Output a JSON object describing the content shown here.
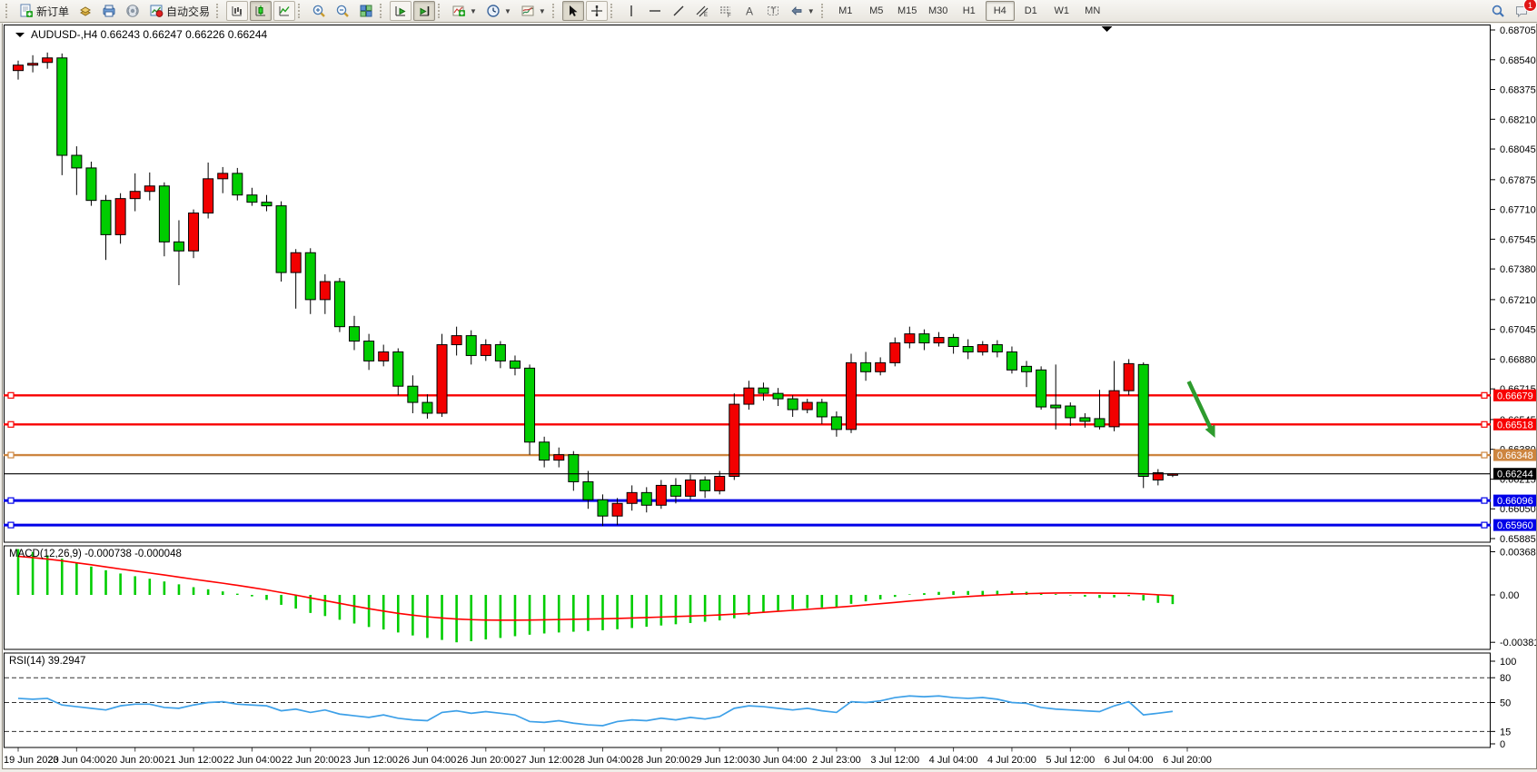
{
  "toolbar": {
    "new_order_label": "新订单",
    "autotrade_label": "自动交易",
    "timeframes": [
      "M1",
      "M5",
      "M15",
      "M30",
      "H1",
      "H4",
      "D1",
      "W1",
      "MN"
    ],
    "active_timeframe": "H4",
    "notification_count": "1",
    "icons": [
      "new-order",
      "gold-bars",
      "print-preview",
      "broadcast",
      "autotrade",
      "bar-chart",
      "candlestick-chart",
      "line-chart",
      "zoom-in",
      "zoom-out",
      "tile-windows",
      "auto-scroll",
      "chart-shift",
      "indicators",
      "periods",
      "templates",
      "cursor",
      "crosshair",
      "vertical-line",
      "horizontal-line",
      "trendline",
      "equidistant-channel",
      "fibonacci-lines",
      "text",
      "text-label",
      "arrow-objects",
      "search",
      "notifications"
    ]
  },
  "chart": {
    "title_symbol": "AUDUSD-,H4",
    "title_ohlc": "0.66243 0.66247 0.66226 0.66244"
  },
  "chart_data": [
    {
      "type": "candlestick",
      "title": "AUDUSD-,H4",
      "up_color": "#f20000",
      "down_color": "#00cd00",
      "ylim": [
        0.65885,
        0.68705
      ],
      "y_ticks": [
        "0.68705",
        "0.68540",
        "0.68375",
        "0.68210",
        "0.68045",
        "0.67875",
        "0.67710",
        "0.67545",
        "0.67380",
        "0.67210",
        "0.67045",
        "0.66880",
        "0.66715",
        "0.66545",
        "0.66380",
        "0.66215",
        "0.66050",
        "0.65885"
      ],
      "x_labels": [
        "19 Jun 2023",
        "20 Jun 04:00",
        "20 Jun 20:00",
        "21 Jun 12:00",
        "22 Jun 04:00",
        "22 Jun 20:00",
        "23 Jun 12:00",
        "26 Jun 04:00",
        "26 Jun 20:00",
        "27 Jun 12:00",
        "28 Jun 04:00",
        "28 Jun 20:00",
        "29 Jun 12:00",
        "30 Jun 04:00",
        "2 Jul 23:00",
        "3 Jul 12:00",
        "4 Jul 04:00",
        "4 Jul 20:00",
        "5 Jul 12:00",
        "6 Jul 04:00",
        "6 Jul 20:00"
      ],
      "x_label_every": 4,
      "candles": [
        [
          0.6848,
          0.68535,
          0.6843,
          0.6851
        ],
        [
          0.6851,
          0.68565,
          0.6847,
          0.6852
        ],
        [
          0.68525,
          0.6858,
          0.6849,
          0.6855
        ],
        [
          0.6855,
          0.68575,
          0.679,
          0.6801
        ],
        [
          0.6801,
          0.6806,
          0.6779,
          0.6794
        ],
        [
          0.6794,
          0.67975,
          0.6773,
          0.6776
        ],
        [
          0.6776,
          0.6779,
          0.6743,
          0.6757
        ],
        [
          0.6757,
          0.678,
          0.6752,
          0.6777
        ],
        [
          0.6777,
          0.6791,
          0.677,
          0.6781
        ],
        [
          0.6781,
          0.67915,
          0.6776,
          0.6784
        ],
        [
          0.6784,
          0.6786,
          0.6745,
          0.6753
        ],
        [
          0.6753,
          0.6765,
          0.6729,
          0.6748
        ],
        [
          0.6748,
          0.6771,
          0.6744,
          0.6769
        ],
        [
          0.6769,
          0.6797,
          0.6766,
          0.6788
        ],
        [
          0.6788,
          0.67945,
          0.678,
          0.6791
        ],
        [
          0.6791,
          0.6794,
          0.6776,
          0.6779
        ],
        [
          0.6779,
          0.6783,
          0.6773,
          0.6775
        ],
        [
          0.6775,
          0.6779,
          0.677,
          0.6773
        ],
        [
          0.6773,
          0.67755,
          0.6731,
          0.6736
        ],
        [
          0.6736,
          0.6749,
          0.6716,
          0.6747
        ],
        [
          0.6747,
          0.67495,
          0.6713,
          0.6721
        ],
        [
          0.6721,
          0.6735,
          0.6713,
          0.6731
        ],
        [
          0.6731,
          0.6733,
          0.6703,
          0.6706
        ],
        [
          0.6706,
          0.6712,
          0.6693,
          0.6698
        ],
        [
          0.6698,
          0.6702,
          0.6682,
          0.6687
        ],
        [
          0.6687,
          0.6696,
          0.6684,
          0.6692
        ],
        [
          0.6692,
          0.6694,
          0.6668,
          0.6673
        ],
        [
          0.6673,
          0.6679,
          0.6658,
          0.6664
        ],
        [
          0.6664,
          0.66685,
          0.6655,
          0.6658
        ],
        [
          0.6658,
          0.6702,
          0.6656,
          0.6696
        ],
        [
          0.6696,
          0.6706,
          0.669,
          0.6701
        ],
        [
          0.6701,
          0.6704,
          0.6685,
          0.669
        ],
        [
          0.669,
          0.6699,
          0.6687,
          0.6696
        ],
        [
          0.6696,
          0.6698,
          0.6683,
          0.6687
        ],
        [
          0.6687,
          0.669,
          0.6679,
          0.6683
        ],
        [
          0.6683,
          0.6685,
          0.6635,
          0.6642
        ],
        [
          0.6642,
          0.6645,
          0.6628,
          0.6632
        ],
        [
          0.6632,
          0.6639,
          0.6628,
          0.6635
        ],
        [
          0.6635,
          0.6637,
          0.6615,
          0.662
        ],
        [
          0.662,
          0.6626,
          0.6605,
          0.661
        ],
        [
          0.661,
          0.6613,
          0.65955,
          0.6601
        ],
        [
          0.6601,
          0.6611,
          0.6596,
          0.6608
        ],
        [
          0.6608,
          0.6618,
          0.6604,
          0.6614
        ],
        [
          0.6614,
          0.6617,
          0.6603,
          0.6607
        ],
        [
          0.6607,
          0.6621,
          0.6605,
          0.6618
        ],
        [
          0.6618,
          0.6622,
          0.6608,
          0.6612
        ],
        [
          0.6612,
          0.6624,
          0.661,
          0.6621
        ],
        [
          0.6621,
          0.6623,
          0.6611,
          0.6615
        ],
        [
          0.6615,
          0.6626,
          0.6613,
          0.6623
        ],
        [
          0.6623,
          0.6669,
          0.6621,
          0.6663
        ],
        [
          0.6663,
          0.6676,
          0.666,
          0.6672
        ],
        [
          0.6672,
          0.6675,
          0.6665,
          0.6669
        ],
        [
          0.6669,
          0.6672,
          0.6662,
          0.6666
        ],
        [
          0.6666,
          0.6668,
          0.6656,
          0.666
        ],
        [
          0.666,
          0.6666,
          0.6658,
          0.6664
        ],
        [
          0.6664,
          0.6666,
          0.6652,
          0.6656
        ],
        [
          0.6656,
          0.6659,
          0.6645,
          0.6649
        ],
        [
          0.6649,
          0.6691,
          0.6647,
          0.6686
        ],
        [
          0.6686,
          0.6692,
          0.6676,
          0.6681
        ],
        [
          0.6681,
          0.6689,
          0.6679,
          0.6686
        ],
        [
          0.6686,
          0.67,
          0.6684,
          0.6697
        ],
        [
          0.6697,
          0.6706,
          0.6694,
          0.6702
        ],
        [
          0.6702,
          0.67045,
          0.6693,
          0.6697
        ],
        [
          0.6697,
          0.6703,
          0.6695,
          0.67
        ],
        [
          0.67,
          0.6702,
          0.6691,
          0.6695
        ],
        [
          0.6695,
          0.6699,
          0.6688,
          0.6692
        ],
        [
          0.6692,
          0.6698,
          0.669,
          0.6696
        ],
        [
          0.6696,
          0.66985,
          0.6689,
          0.6692
        ],
        [
          0.6692,
          0.6695,
          0.668,
          0.6682
        ],
        [
          0.6684,
          0.6687,
          0.66725,
          0.6681
        ],
        [
          0.6682,
          0.6684,
          0.666,
          0.66615
        ],
        [
          0.66625,
          0.6685,
          0.6649,
          0.6661
        ],
        [
          0.6662,
          0.6664,
          0.6651,
          0.66555
        ],
        [
          0.66555,
          0.6658,
          0.665,
          0.66535
        ],
        [
          0.6655,
          0.6671,
          0.6649,
          0.66505
        ],
        [
          0.66505,
          0.6687,
          0.6648,
          0.66705
        ],
        [
          0.66705,
          0.6688,
          0.6668,
          0.66855
        ],
        [
          0.6685,
          0.66862,
          0.66165,
          0.6623
        ],
        [
          0.6621,
          0.6627,
          0.6618,
          0.6625
        ],
        [
          0.66243,
          0.66247,
          0.66226,
          0.66244
        ]
      ],
      "hlines": [
        {
          "price": 0.66679,
          "label": "0.66679",
          "color": "#f80000",
          "width": 2.4
        },
        {
          "price": 0.66518,
          "label": "0.66518",
          "color": "#f80000",
          "width": 2.4
        },
        {
          "price": 0.66348,
          "label": "0.66348",
          "color": "#cd853f",
          "width": 2.4
        },
        {
          "price": 0.66096,
          "label": "0.66096",
          "color": "#0000e8",
          "width": 3
        },
        {
          "price": 0.6596,
          "label": "0.65960",
          "color": "#0000e8",
          "width": 3
        }
      ],
      "current_price": {
        "value": 0.66244,
        "label": "0.66244",
        "color": "#000000"
      },
      "annotations": {
        "arrow": {
          "from_bar": 80.1,
          "from_price": 0.66756,
          "to_bar": 81.9,
          "to_price": 0.66444,
          "color": "#2e9b2e"
        },
        "shift_marker_bar": 74.5
      }
    },
    {
      "type": "bar",
      "name": "MACD(12,26,9)",
      "values_label": "-0.000738 -0.000048",
      "hist_color": "#00cd00",
      "signal_color": "#ff0000",
      "y_ticks": [
        {
          "v": 0.003684,
          "label": "0.003684"
        },
        {
          "v": 0,
          "label": "0.00"
        },
        {
          "v": -0.00381,
          "label": "-0.00381"
        }
      ],
      "histogram": [
        0.00368,
        0.00345,
        0.00318,
        0.0029,
        0.00258,
        0.00228,
        0.00198,
        0.00172,
        0.0015,
        0.0013,
        0.00108,
        0.00085,
        0.00062,
        0.00045,
        0.00028,
        0.0001,
        -0.00012,
        -0.0004,
        -0.0008,
        -0.0011,
        -0.00145,
        -0.0017,
        -0.002,
        -0.0023,
        -0.00258,
        -0.00278,
        -0.00302,
        -0.00326,
        -0.00346,
        -0.00362,
        -0.00381,
        -0.00372,
        -0.00358,
        -0.00346,
        -0.00332,
        -0.0032,
        -0.0031,
        -0.00302,
        -0.00296,
        -0.0029,
        -0.00284,
        -0.00276,
        -0.00266,
        -0.00256,
        -0.00246,
        -0.00236,
        -0.00226,
        -0.00216,
        -0.00205,
        -0.00188,
        -0.00163,
        -0.00143,
        -0.00127,
        -0.00116,
        -0.00107,
        -0.00101,
        -0.00096,
        -0.00072,
        -0.00052,
        -0.00036,
        -0.00016,
        4e-05,
        0.00014,
        0.00024,
        0.0003,
        0.00031,
        0.00032,
        0.00033,
        0.0003,
        0.00025,
        0.00016,
        6e-05,
        -4e-05,
        -0.00014,
        -0.00024,
        -0.0002,
        -0.0001,
        -0.00045,
        -0.00064,
        -0.00074
      ],
      "signal": [
        0.0031,
        0.003,
        0.00288,
        0.00274,
        0.00258,
        0.00242,
        0.00225,
        0.00208,
        0.00192,
        0.00176,
        0.0016,
        0.00143,
        0.00126,
        0.0011,
        0.00094,
        0.00077,
        0.00059,
        0.0004,
        0.00019,
        -2e-05,
        -0.00024,
        -0.00046,
        -0.00068,
        -0.0009,
        -0.00111,
        -0.0013,
        -0.00148,
        -0.00163,
        -0.00176,
        -0.00186,
        -0.00194,
        -0.00199,
        -0.00202,
        -0.00203,
        -0.00203,
        -0.00202,
        -0.002,
        -0.00198,
        -0.00196,
        -0.00194,
        -0.00192,
        -0.00189,
        -0.00186,
        -0.00182,
        -0.00178,
        -0.00174,
        -0.0017,
        -0.00166,
        -0.00161,
        -0.00155,
        -0.00148,
        -0.0014,
        -0.00132,
        -0.00124,
        -0.00116,
        -0.00108,
        -0.001,
        -0.00091,
        -0.00081,
        -0.00071,
        -0.00061,
        -0.0005,
        -0.0004,
        -0.0003,
        -0.00021,
        -0.00013,
        -6e-05,
        0.0,
        6e-05,
        0.0001,
        0.00013,
        0.00015,
        0.00016,
        0.00016,
        0.00015,
        0.00013,
        0.00012,
        8e-05,
        1e-05,
        -5e-05
      ]
    },
    {
      "type": "line",
      "name": "RSI(14)",
      "value_label": "39.2947",
      "line_color": "#3da0e8",
      "levels": [
        80,
        50,
        15
      ],
      "y_ticks": [
        {
          "v": 100,
          "label": "100"
        },
        {
          "v": 80,
          "label": "80"
        },
        {
          "v": 50,
          "label": "50"
        },
        {
          "v": 15,
          "label": "15"
        },
        {
          "v": 0,
          "label": "0"
        }
      ],
      "values": [
        55,
        54,
        55,
        47,
        45,
        43,
        41,
        46,
        48,
        48,
        44,
        43,
        47,
        50,
        51,
        48,
        47,
        46,
        40,
        42,
        38,
        41,
        36,
        34,
        32,
        35,
        31,
        29,
        28,
        38,
        40,
        37,
        39,
        37,
        35,
        27,
        26,
        28,
        25,
        23,
        22,
        27,
        29,
        28,
        31,
        29,
        32,
        30,
        33,
        43,
        46,
        45,
        43,
        41,
        43,
        40,
        38,
        51,
        50,
        52,
        56,
        58,
        57,
        58,
        56,
        55,
        56,
        54,
        50,
        49,
        44,
        42,
        41,
        40,
        39,
        46,
        51,
        35,
        37,
        39.29
      ]
    }
  ]
}
